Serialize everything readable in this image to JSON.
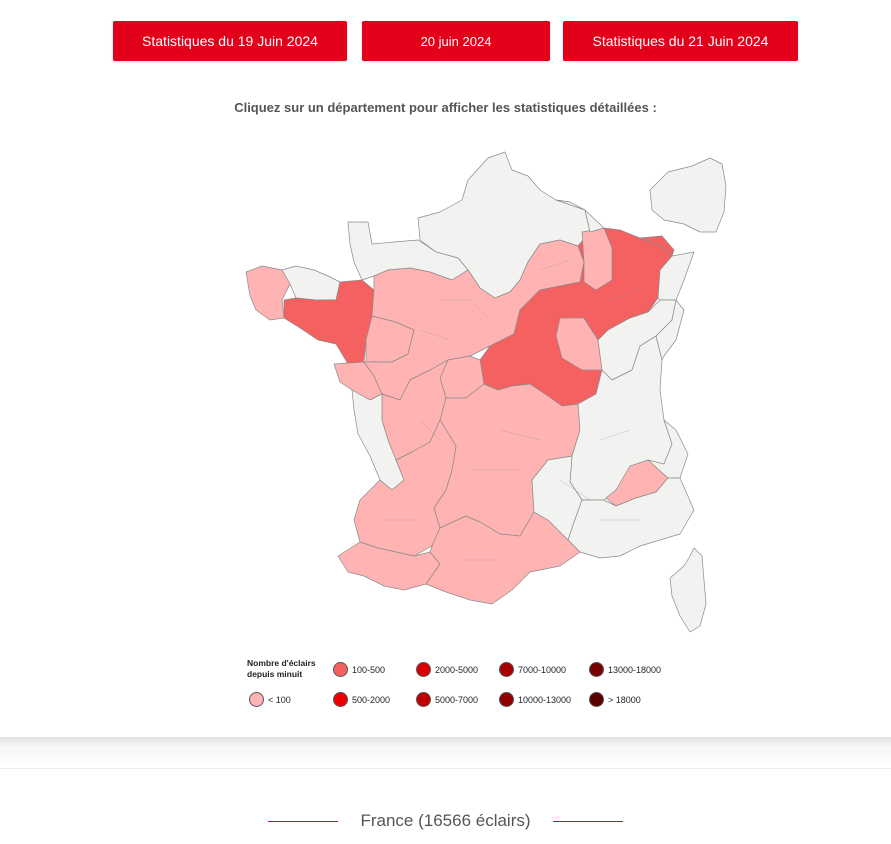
{
  "nav": {
    "prev_label": "Statistiques du 19 Juin 2024",
    "current_label": "20 juin 2024",
    "next_label": "Statistiques du 21 Juin 2024"
  },
  "instruction": "Cliquez sur un département pour afficher les statistiques détaillées :",
  "legend": {
    "title_line1": "Nombre d'éclairs",
    "title_line2": "depuis minuit",
    "classes": [
      {
        "label": "< 100",
        "color": "#ffb3b3"
      },
      {
        "label": "100-500",
        "color": "#f56060"
      },
      {
        "label": "500-2000",
        "color": "#ee0000"
      },
      {
        "label": "2000-5000",
        "color": "#d80000"
      },
      {
        "label": "5000-7000",
        "color": "#c20000"
      },
      {
        "label": "7000-10000",
        "color": "#a80000"
      },
      {
        "label": "10000-13000",
        "color": "#900000"
      },
      {
        "label": "13000-18000",
        "color": "#780000"
      },
      {
        "label": "> 18000",
        "color": "#5a0000"
      }
    ]
  },
  "no_data_color": "#f2f2f0",
  "section_title": "France (16566 éclairs)"
}
